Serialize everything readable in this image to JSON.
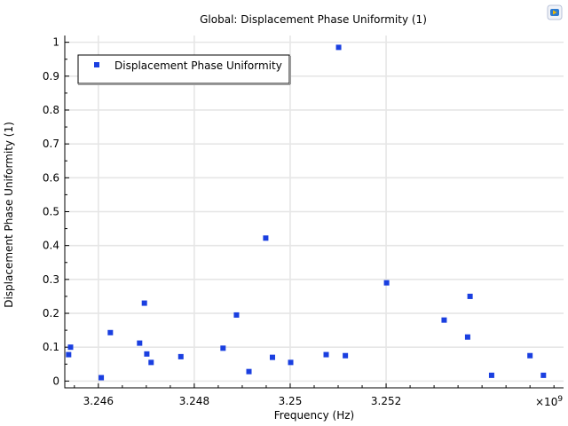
{
  "chart_data": {
    "type": "scatter",
    "title": "Global: Displacement Phase Uniformity (1)",
    "xlabel": "Frequency (Hz)",
    "ylabel": "Displacement Phase Uniformity (1)",
    "x_exponent_label": "×10",
    "x_exponent_power": "9",
    "xlim": [
      3.2453,
      3.2557
    ],
    "ylim": [
      -0.02,
      1.02
    ],
    "xticks": [
      3.246,
      3.248,
      3.25,
      3.252
    ],
    "xtick_labels": [
      "3.246",
      "3.248",
      "3.25",
      "3.252"
    ],
    "yticks": [
      0,
      0.1,
      0.2,
      0.3,
      0.4,
      0.5,
      0.6,
      0.7,
      0.8,
      0.9,
      1
    ],
    "ytick_labels": [
      "0",
      "0.1",
      "0.2",
      "0.3",
      "0.4",
      "0.5",
      "0.6",
      "0.7",
      "0.8",
      "0.9",
      "1"
    ],
    "grid": true,
    "legend_position": "top-left",
    "series": [
      {
        "name": "Displacement Phase Uniformity",
        "color": "#1a3fe0",
        "marker": "square",
        "points": [
          [
            3.24538,
            0.078
          ],
          [
            3.24542,
            0.1
          ],
          [
            3.24606,
            0.01
          ],
          [
            3.24625,
            0.143
          ],
          [
            3.24686,
            0.112
          ],
          [
            3.24696,
            0.23
          ],
          [
            3.24701,
            0.08
          ],
          [
            3.2471,
            0.055
          ],
          [
            3.24772,
            0.072
          ],
          [
            3.2486,
            0.097
          ],
          [
            3.24888,
            0.195
          ],
          [
            3.24914,
            0.028
          ],
          [
            3.24949,
            0.422
          ],
          [
            3.24963,
            0.07
          ],
          [
            3.25001,
            0.055
          ],
          [
            3.25075,
            0.078
          ],
          [
            3.25101,
            0.985
          ],
          [
            3.25115,
            0.075
          ],
          [
            3.25201,
            0.29
          ],
          [
            3.25321,
            0.18
          ],
          [
            3.2537,
            0.13
          ],
          [
            3.25375,
            0.25
          ],
          [
            3.2542,
            0.017
          ],
          [
            3.255,
            0.075
          ],
          [
            3.25528,
            0.017
          ]
        ]
      }
    ]
  },
  "toolbar": {
    "logo_icon": "comsol-logo-icon"
  }
}
